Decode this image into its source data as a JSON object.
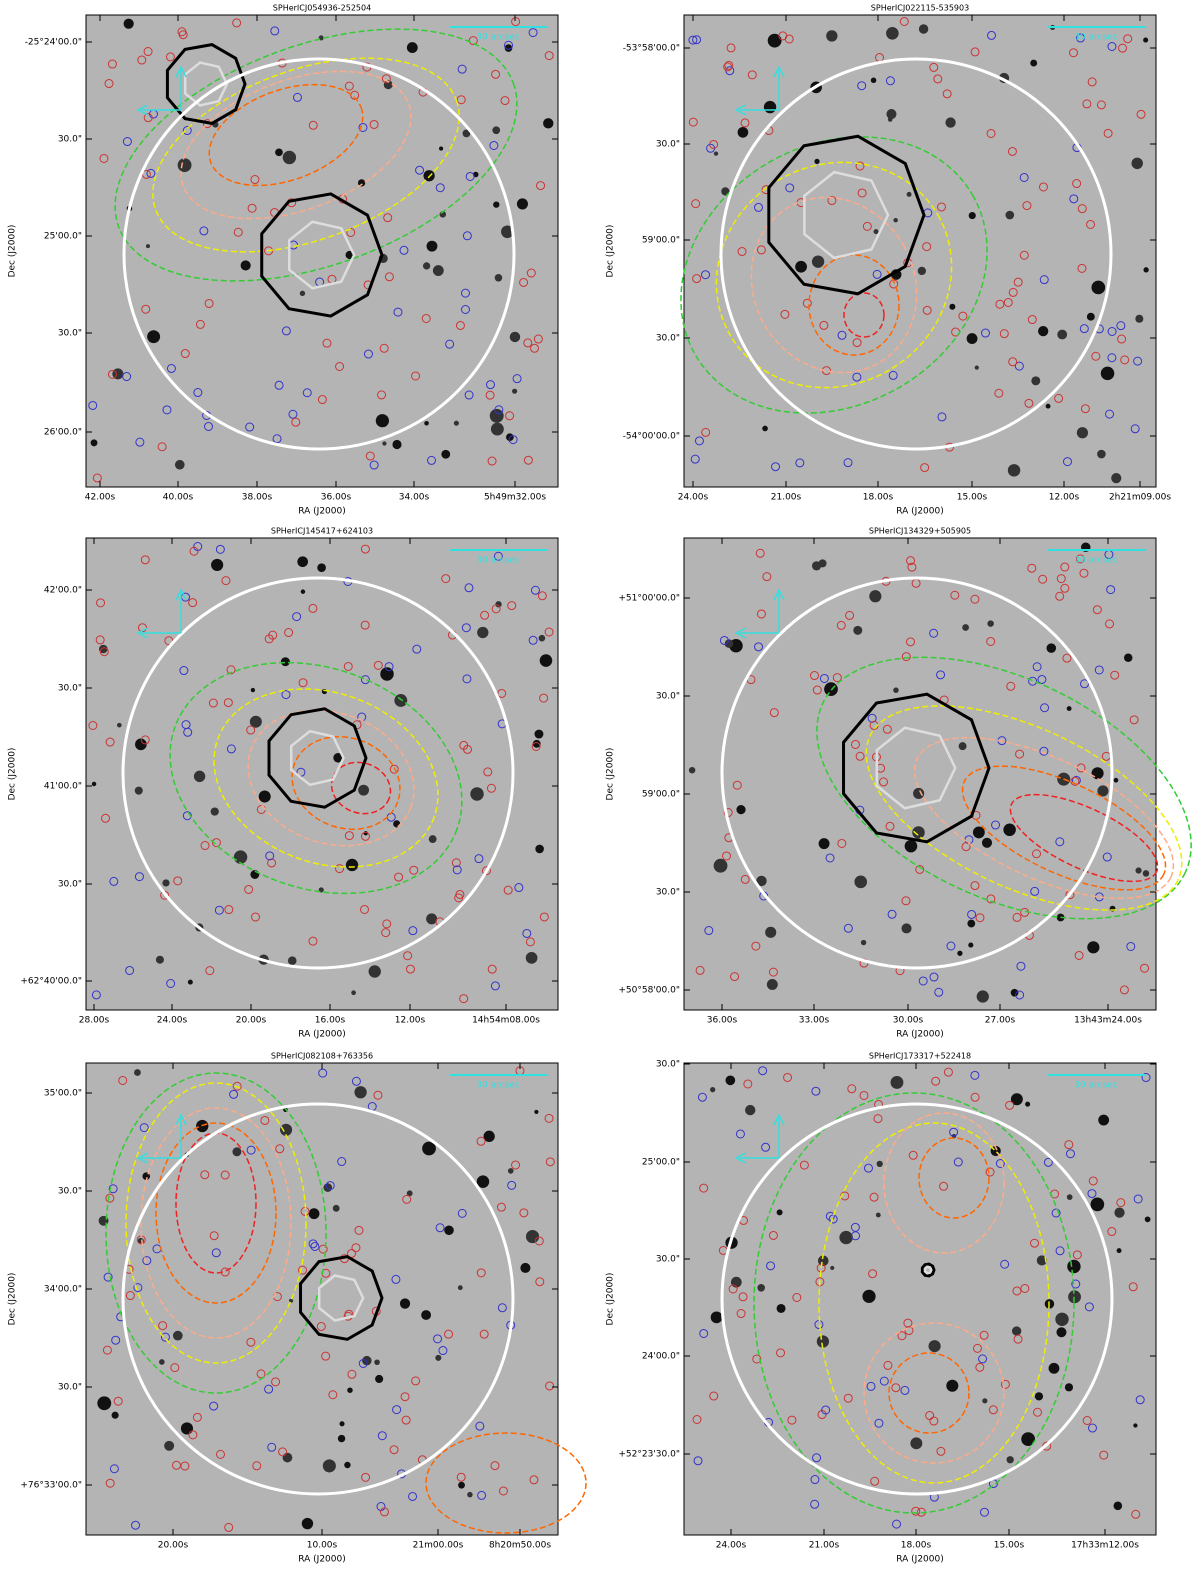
{
  "panels": [
    {
      "title": "SPHerICJ054936-252504",
      "scale_label": "30 arcsec",
      "ylabel": "Dec (J2000)",
      "xlabel": "RA (J2000)",
      "yticks": [
        "-25°24'00.0\"",
        "30.0\"",
        "25'00.0\"",
        "30.0\"",
        "26'00.0\""
      ],
      "xticks": [
        "42.00s",
        "40.00s",
        "38.00s",
        "36.00s",
        "34.00s",
        "5h49m32.00s"
      ]
    },
    {
      "title": "SPHerICJ022115-535903",
      "scale_label": "30 arcsec",
      "ylabel": "Dec (J2000)",
      "xlabel": "RA (J2000)",
      "yticks": [
        "-53°58'00.0\"",
        "30.0\"",
        "59'00.0\"",
        "30.0\"",
        "-54°00'00.0\""
      ],
      "xticks": [
        "24.00s",
        "21.00s",
        "18.00s",
        "15.00s",
        "12.00s",
        "2h21m09.00s"
      ]
    },
    {
      "title": "SPHerICJ145417+624103",
      "scale_label": "30 arcsec",
      "ylabel": "Dec (J2000)",
      "xlabel": "RA (J2000)",
      "yticks": [
        "42'00.0\"",
        "30.0\"",
        "41'00.0\"",
        "30.0\"",
        "+62°40'00.0\""
      ],
      "xticks": [
        "28.00s",
        "24.00s",
        "20.00s",
        "16.00s",
        "12.00s",
        "14h54m08.00s"
      ]
    },
    {
      "title": "SPHerICJ134329+505905",
      "scale_label": "30 arcsec",
      "ylabel": "Dec (J2000)",
      "xlabel": "RA (J2000)",
      "yticks": [
        "+51°00'00.0\"",
        "30.0\"",
        "59'00.0\"",
        "30.0\"",
        "+50°58'00.0\""
      ],
      "xticks": [
        "36.00s",
        "33.00s",
        "30.00s",
        "27.00s",
        "13h43m24.00s"
      ]
    },
    {
      "title": "SPHerICJ082108+763356",
      "scale_label": "30 arcsec",
      "ylabel": "Dec (J2000)",
      "xlabel": "RA (J2000)",
      "yticks": [
        "35'00.0\"",
        "30.0\"",
        "34'00.0\"",
        "30.0\"",
        "+76°33'00.0\""
      ],
      "xticks": [
        "20.00s",
        "10.00s",
        "21m00.00s",
        "8h20m50.00s"
      ]
    },
    {
      "title": "SPHerICJ173317+522418",
      "scale_label": "30 arcsec",
      "ylabel": "Dec (J2000)",
      "xlabel": "RA (J2000)",
      "yticks": [
        "30.0\"",
        "25'00.0\"",
        "30.0\"",
        "24'00.0\"",
        "+52°23'30.0\""
      ],
      "xticks": [
        "24.00s",
        "21.00s",
        "18.00s",
        "15.00s",
        "17h33m12.00s"
      ]
    }
  ]
}
